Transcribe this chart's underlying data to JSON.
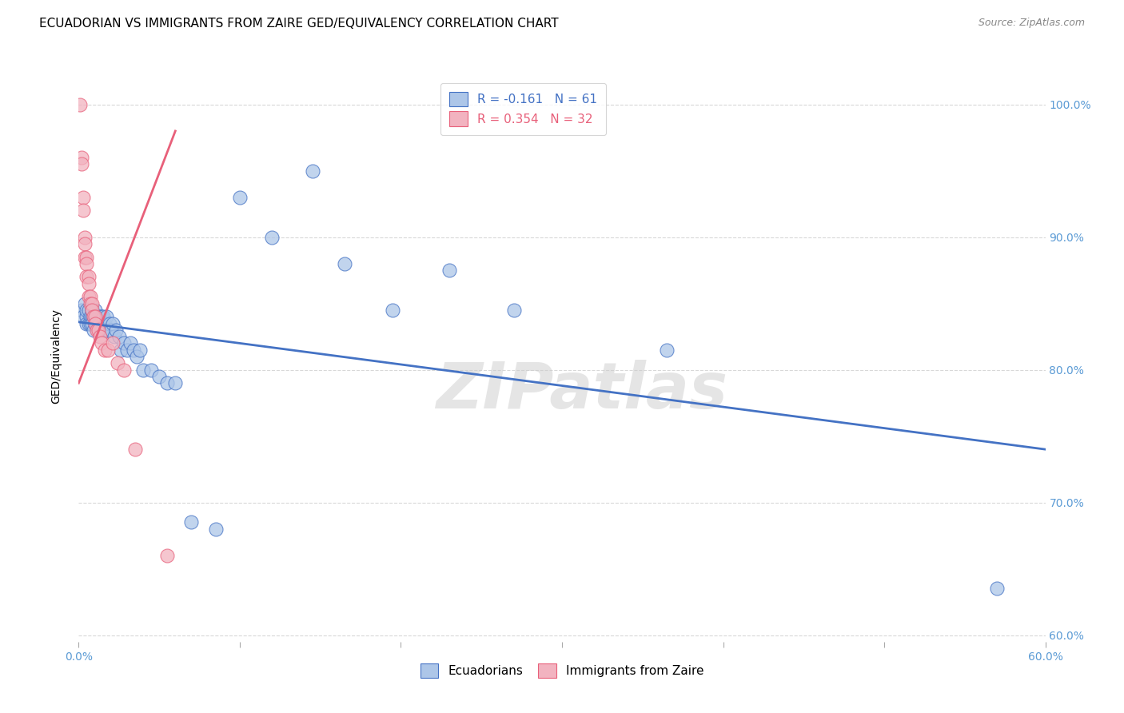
{
  "title": "ECUADORIAN VS IMMIGRANTS FROM ZAIRE GED/EQUIVALENCY CORRELATION CHART",
  "source": "Source: ZipAtlas.com",
  "ylabel": "GED/Equivalency",
  "xlim": [
    0.0,
    0.6
  ],
  "ylim": [
    0.595,
    1.025
  ],
  "xticks": [
    0.0,
    0.1,
    0.2,
    0.3,
    0.4,
    0.5,
    0.6
  ],
  "xticklabels": [
    "0.0%",
    "",
    "",
    "",
    "",
    "",
    "60.0%"
  ],
  "yticks": [
    0.6,
    0.7,
    0.8,
    0.9,
    1.0
  ],
  "yticklabels": [
    "60.0%",
    "70.0%",
    "80.0%",
    "90.0%",
    "100.0%"
  ],
  "background_color": "#ffffff",
  "grid_color": "#d8d8d8",
  "blue_color": "#adc6e8",
  "pink_color": "#f2b3c0",
  "blue_line_color": "#4472c4",
  "pink_line_color": "#e8607a",
  "legend_r1": "R = -0.161",
  "legend_n1": "N = 61",
  "legend_r2": "R = 0.354",
  "legend_n2": "N = 32",
  "blue_line_x": [
    0.0,
    0.6
  ],
  "blue_line_y": [
    0.836,
    0.74
  ],
  "pink_line_x": [
    0.0,
    0.06
  ],
  "pink_line_y": [
    0.79,
    0.98
  ],
  "blue_scatter_x": [
    0.002,
    0.003,
    0.004,
    0.005,
    0.005,
    0.005,
    0.006,
    0.006,
    0.007,
    0.007,
    0.008,
    0.008,
    0.008,
    0.009,
    0.009,
    0.01,
    0.01,
    0.01,
    0.011,
    0.011,
    0.012,
    0.012,
    0.013,
    0.013,
    0.014,
    0.014,
    0.015,
    0.015,
    0.016,
    0.017,
    0.017,
    0.018,
    0.019,
    0.02,
    0.021,
    0.022,
    0.023,
    0.025,
    0.026,
    0.028,
    0.03,
    0.032,
    0.034,
    0.036,
    0.038,
    0.04,
    0.045,
    0.05,
    0.055,
    0.06,
    0.07,
    0.085,
    0.1,
    0.12,
    0.145,
    0.165,
    0.195,
    0.23,
    0.365,
    0.57,
    0.27
  ],
  "blue_scatter_y": [
    0.845,
    0.84,
    0.85,
    0.84,
    0.835,
    0.845,
    0.835,
    0.845,
    0.84,
    0.835,
    0.84,
    0.835,
    0.845,
    0.83,
    0.84,
    0.84,
    0.835,
    0.845,
    0.835,
    0.84,
    0.835,
    0.84,
    0.84,
    0.835,
    0.83,
    0.84,
    0.835,
    0.84,
    0.835,
    0.83,
    0.84,
    0.83,
    0.835,
    0.83,
    0.835,
    0.825,
    0.83,
    0.825,
    0.815,
    0.82,
    0.815,
    0.82,
    0.815,
    0.81,
    0.815,
    0.8,
    0.8,
    0.795,
    0.79,
    0.79,
    0.685,
    0.68,
    0.93,
    0.9,
    0.95,
    0.88,
    0.845,
    0.875,
    0.815,
    0.635,
    0.845
  ],
  "pink_scatter_x": [
    0.001,
    0.002,
    0.002,
    0.003,
    0.003,
    0.004,
    0.004,
    0.004,
    0.005,
    0.005,
    0.005,
    0.006,
    0.006,
    0.006,
    0.007,
    0.007,
    0.008,
    0.008,
    0.009,
    0.01,
    0.01,
    0.011,
    0.012,
    0.013,
    0.014,
    0.016,
    0.018,
    0.021,
    0.024,
    0.028,
    0.035,
    0.055
  ],
  "pink_scatter_y": [
    1.0,
    0.96,
    0.955,
    0.93,
    0.92,
    0.9,
    0.895,
    0.885,
    0.885,
    0.88,
    0.87,
    0.87,
    0.865,
    0.855,
    0.855,
    0.85,
    0.85,
    0.845,
    0.84,
    0.84,
    0.835,
    0.83,
    0.83,
    0.825,
    0.82,
    0.815,
    0.815,
    0.82,
    0.805,
    0.8,
    0.74,
    0.66
  ],
  "watermark": "ZIPatlas",
  "title_fontsize": 11,
  "axis_label_fontsize": 10,
  "tick_fontsize": 10,
  "legend_fontsize": 11,
  "right_ytick_color": "#5b9bd5"
}
